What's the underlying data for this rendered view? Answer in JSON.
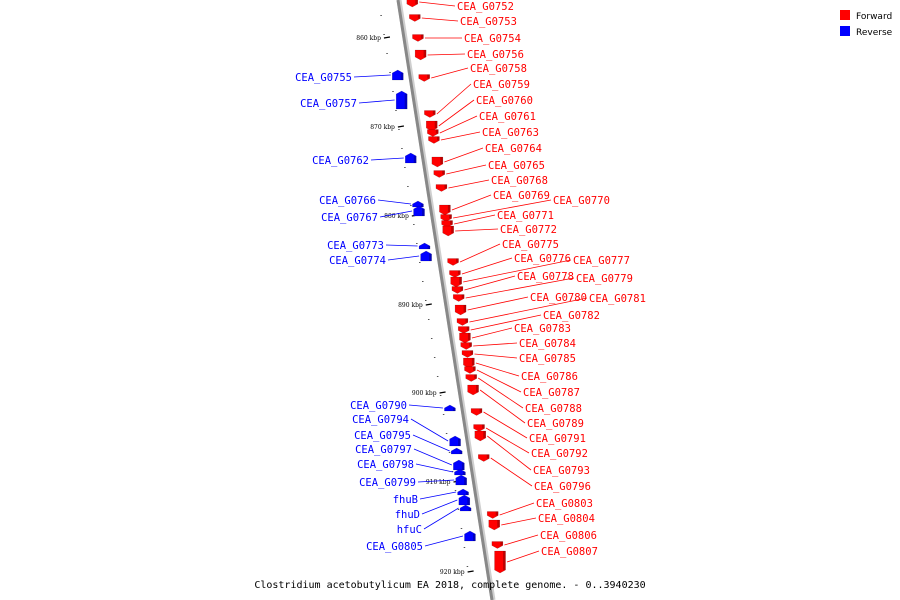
{
  "colors": {
    "forward": "#ff0000",
    "reverse": "#0000ff",
    "backbone": "#888888"
  },
  "legend": [
    {
      "label": "Forward",
      "strand": "forward"
    },
    {
      "label": "Reverse",
      "strand": "reverse"
    }
  ],
  "caption": "Clostridium acetobutylicum EA 2018, complete genome. - 0..3940230",
  "ticks": [
    "860 kbp",
    "870 kbp",
    "880 kbp",
    "890 kbp",
    "900 kbp",
    "910 kbp",
    "920 kbp"
  ],
  "forward_genes": [
    "CEA_G0752",
    "CEA_G0753",
    "CEA_G0754",
    "CEA_G0756",
    "CEA_G0758",
    "CEA_G0759",
    "CEA_G0760",
    "CEA_G0761",
    "CEA_G0763",
    "CEA_G0764",
    "CEA_G0765",
    "CEA_G0768",
    "CEA_G0769",
    "CEA_G0770",
    "CEA_G0771",
    "CEA_G0772",
    "CEA_G0775",
    "CEA_G0776",
    "CEA_G0777",
    "CEA_G0778",
    "CEA_G0779",
    "CEA_G0780",
    "CEA_G0781",
    "CEA_G0782",
    "CEA_G0783",
    "CEA_G0784",
    "CEA_G0785",
    "CEA_G0786",
    "CEA_G0787",
    "CEA_G0788",
    "CEA_G0789",
    "CEA_G0791",
    "CEA_G0792",
    "CEA_G0793",
    "CEA_G0796",
    "CEA_G0803",
    "CEA_G0804",
    "CEA_G0806",
    "CEA_G0807"
  ],
  "reverse_genes": [
    "CEA_G0755",
    "CEA_G0757",
    "CEA_G0762",
    "CEA_G0766",
    "CEA_G0767",
    "CEA_G0773",
    "CEA_G0774",
    "CEA_G0790",
    "CEA_G0794",
    "CEA_G0795",
    "CEA_G0797",
    "CEA_G0798",
    "CEA_G0799",
    "fhuB",
    "fhuD",
    "hfuC",
    "CEA_G0805"
  ]
}
